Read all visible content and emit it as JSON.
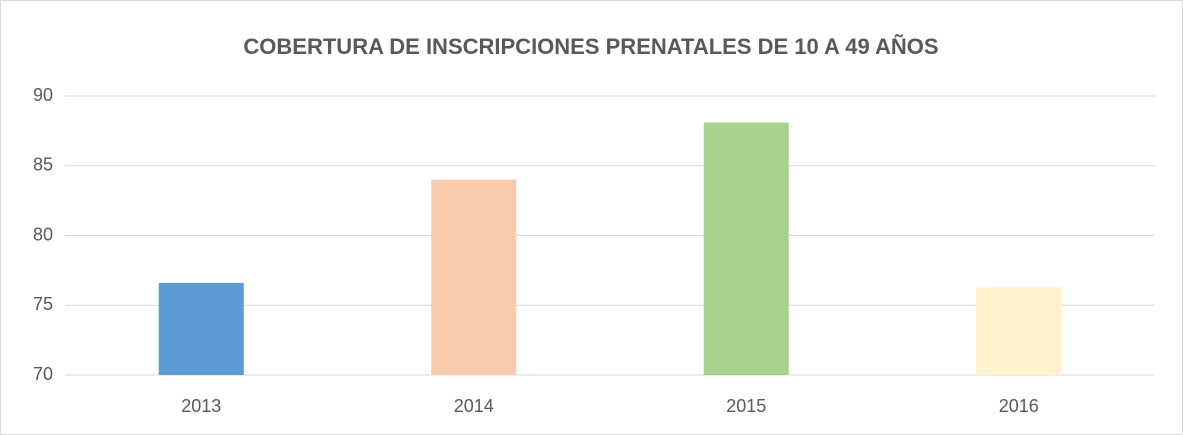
{
  "chart_data": {
    "type": "bar",
    "title": "COBERTURA DE INSCRIPCIONES PRENATALES DE 10 A 49 AÑOS",
    "categories": [
      "2013",
      "2014",
      "2015",
      "2016"
    ],
    "values": [
      76.6,
      84.0,
      88.1,
      76.3
    ],
    "colors": [
      "#5b9bd5",
      "#f8cbad",
      "#a9d18e",
      "#fff2cc"
    ],
    "ylim": [
      70,
      90
    ],
    "yticks": [
      70,
      75,
      80,
      85,
      90
    ],
    "grid": true
  }
}
